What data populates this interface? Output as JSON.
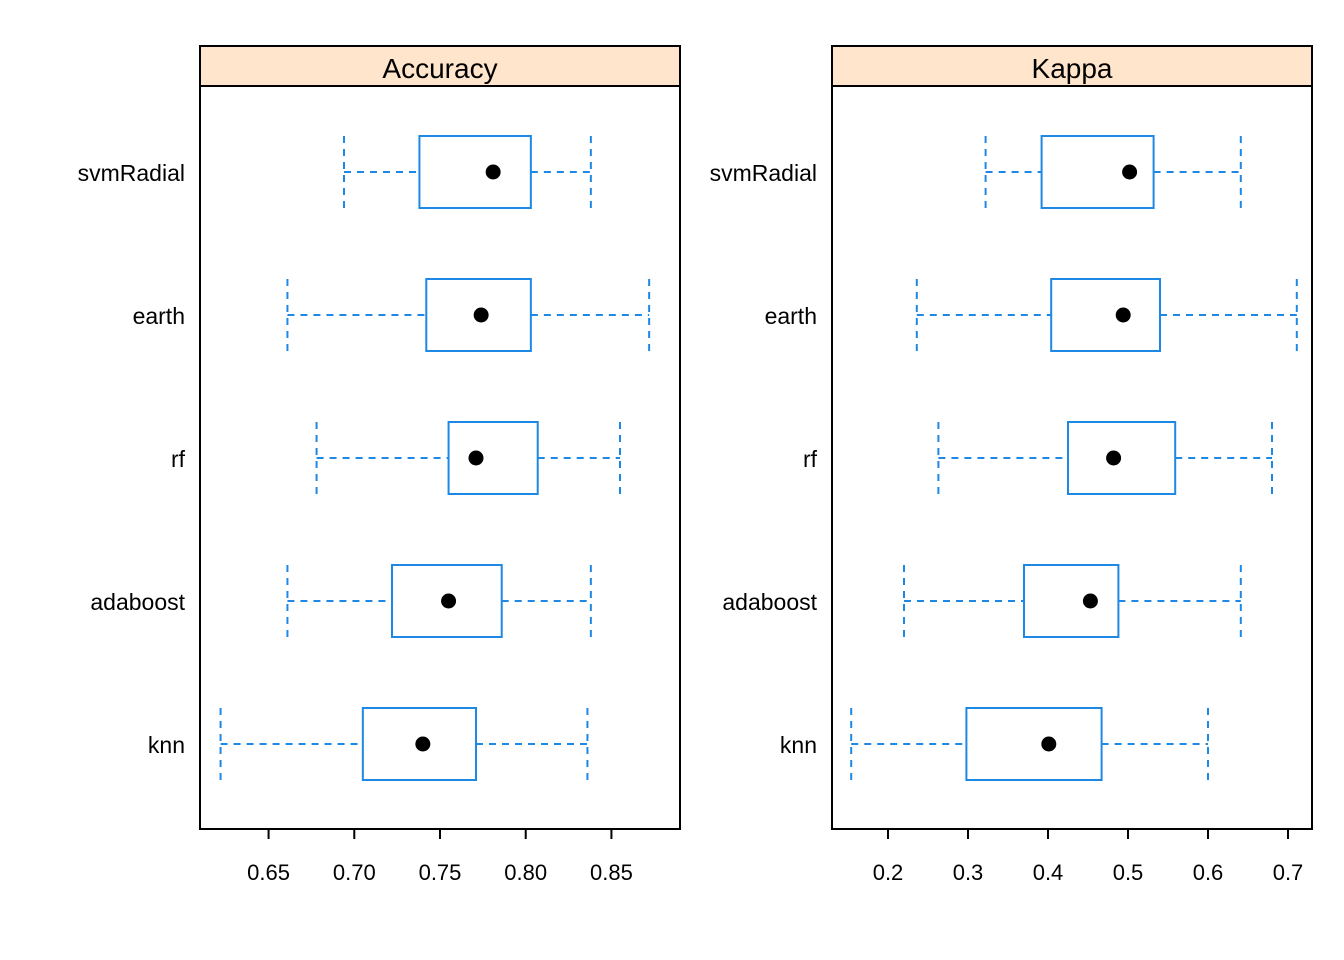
{
  "chart_data": [
    {
      "type": "boxplot",
      "title": "Accuracy",
      "xlim": [
        0.61,
        0.89
      ],
      "ticks": [
        0.65,
        0.7,
        0.75,
        0.8,
        0.85
      ],
      "tick_labels": [
        "0.65",
        "0.70",
        "0.75",
        "0.80",
        "0.85"
      ],
      "categories": [
        "svmRadial",
        "earth",
        "rf",
        "adaboost",
        "knn"
      ],
      "boxes": [
        {
          "min": 0.694,
          "q1": 0.738,
          "median": 0.781,
          "q3": 0.803,
          "max": 0.838
        },
        {
          "min": 0.661,
          "q1": 0.742,
          "median": 0.774,
          "q3": 0.803,
          "max": 0.872
        },
        {
          "min": 0.678,
          "q1": 0.755,
          "median": 0.771,
          "q3": 0.807,
          "max": 0.855
        },
        {
          "min": 0.661,
          "q1": 0.722,
          "median": 0.755,
          "q3": 0.786,
          "max": 0.838
        },
        {
          "min": 0.622,
          "q1": 0.705,
          "median": 0.74,
          "q3": 0.771,
          "max": 0.836
        }
      ]
    },
    {
      "type": "boxplot",
      "title": "Kappa",
      "xlim": [
        0.13,
        0.73
      ],
      "ticks": [
        0.2,
        0.3,
        0.4,
        0.5,
        0.6,
        0.7
      ],
      "tick_labels": [
        "0.2",
        "0.3",
        "0.4",
        "0.5",
        "0.6",
        "0.7"
      ],
      "categories": [
        "svmRadial",
        "earth",
        "rf",
        "adaboost",
        "knn"
      ],
      "boxes": [
        {
          "min": 0.322,
          "q1": 0.392,
          "median": 0.502,
          "q3": 0.532,
          "max": 0.641
        },
        {
          "min": 0.236,
          "q1": 0.404,
          "median": 0.494,
          "q3": 0.54,
          "max": 0.711
        },
        {
          "min": 0.263,
          "q1": 0.425,
          "median": 0.482,
          "q3": 0.559,
          "max": 0.68
        },
        {
          "min": 0.22,
          "q1": 0.37,
          "median": 0.453,
          "q3": 0.488,
          "max": 0.641
        },
        {
          "min": 0.154,
          "q1": 0.298,
          "median": 0.401,
          "q3": 0.467,
          "max": 0.6
        }
      ]
    }
  ],
  "colors": {
    "box": "#1e88e5",
    "median_dot": "#000000",
    "strip_bg": "#ffe5cc",
    "frame": "#000000"
  }
}
